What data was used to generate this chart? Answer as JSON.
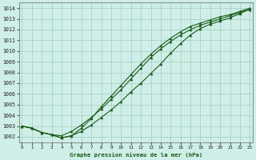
{
  "title": "Graphe pression niveau de la mer (hPa)",
  "background_color": "#d0eee8",
  "grid_color": "#a0ccbc",
  "line_color": "#1a5c1a",
  "xlim": [
    -0.3,
    23.3
  ],
  "ylim": [
    1001.5,
    1014.5
  ],
  "xticks": [
    0,
    1,
    2,
    3,
    4,
    5,
    6,
    7,
    8,
    9,
    10,
    11,
    12,
    13,
    14,
    15,
    16,
    17,
    18,
    19,
    20,
    21,
    22,
    23
  ],
  "yticks": [
    1002,
    1003,
    1004,
    1005,
    1006,
    1007,
    1008,
    1009,
    1010,
    1011,
    1012,
    1013,
    1014
  ],
  "line1_y": [
    1003.0,
    1002.8,
    1002.4,
    1002.2,
    1002.1,
    1002.5,
    1003.1,
    1003.8,
    1004.6,
    1005.5,
    1006.4,
    1007.4,
    1008.4,
    1009.4,
    1010.2,
    1010.9,
    1011.5,
    1012.0,
    1012.4,
    1012.7,
    1013.0,
    1013.3,
    1013.6,
    1013.9
  ],
  "line2_y": [
    1003.0,
    1002.8,
    1002.4,
    1002.2,
    1001.9,
    1002.1,
    1002.5,
    1003.1,
    1003.8,
    1004.5,
    1005.3,
    1006.2,
    1007.0,
    1007.9,
    1008.8,
    1009.8,
    1010.7,
    1011.5,
    1012.1,
    1012.5,
    1012.8,
    1013.1,
    1013.5,
    1013.9
  ],
  "line3_y": [
    1003.0,
    1002.8,
    1002.4,
    1002.2,
    1001.9,
    1002.1,
    1002.8,
    1003.7,
    1004.8,
    1005.8,
    1006.8,
    1007.8,
    1008.8,
    1009.7,
    1010.5,
    1011.2,
    1011.8,
    1012.3,
    1012.6,
    1012.9,
    1013.2,
    1013.4,
    1013.7,
    1014.0
  ]
}
